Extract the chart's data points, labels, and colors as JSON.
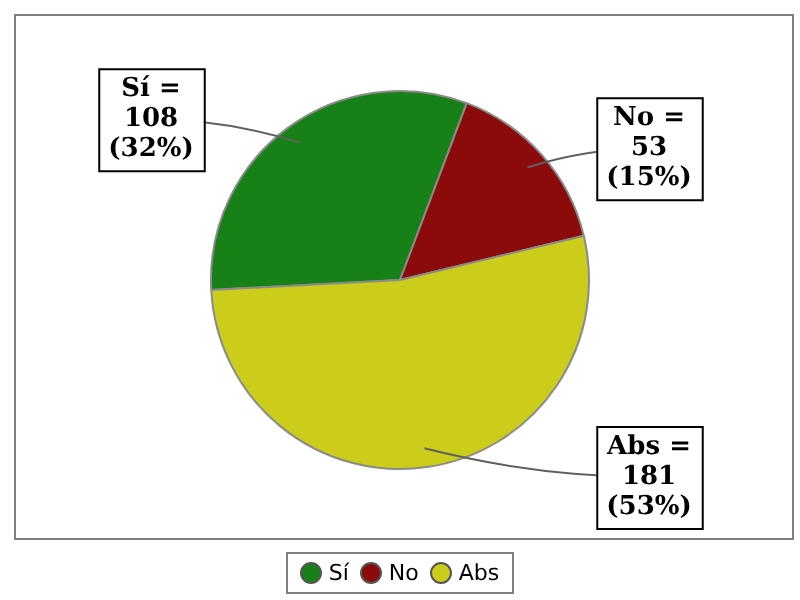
{
  "chart_data": {
    "type": "pie",
    "categories": [
      "Sí",
      "No",
      "Abs"
    ],
    "values": [
      108,
      53,
      181
    ],
    "colors": [
      "#178017",
      "#8b0a0a",
      "#cccc1a"
    ],
    "value_labels": [
      "Sí =\n108\n(32%)",
      "No =\n53\n(15%)",
      "Abs =\n181\n(53%)"
    ],
    "legend": "bottom"
  }
}
